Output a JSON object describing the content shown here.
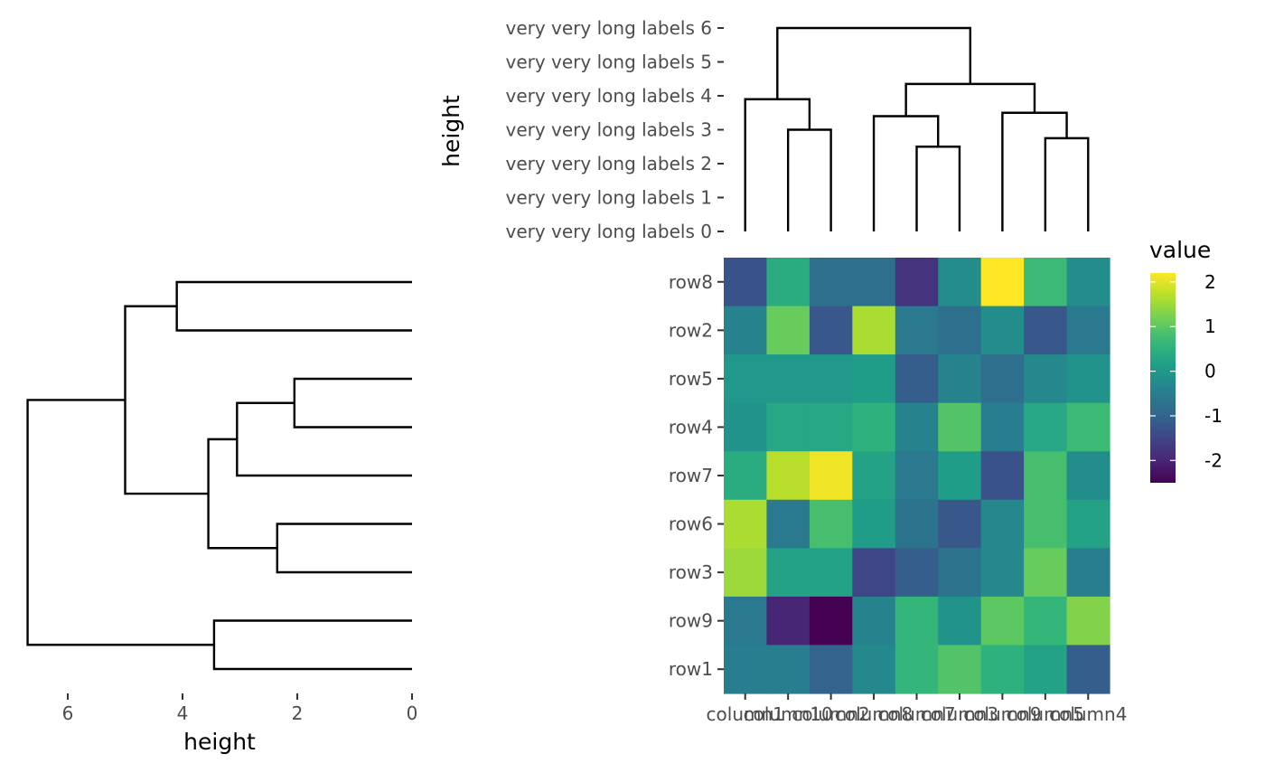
{
  "chart_data": [
    {
      "type": "dendrogram",
      "orientation": "top",
      "ylabel": "height",
      "ytick_labels": [
        "very very long labels 0",
        "very very long labels 1",
        "very very long labels 2",
        "very very long labels 3",
        "very very long labels 4",
        "very very long labels 5",
        "very very long labels 6"
      ],
      "leaf_order": [
        "column1",
        "column10",
        "column2",
        "column8",
        "column7",
        "column3",
        "column9",
        "column5",
        "column4"
      ],
      "merges": [
        {
          "left": "column10",
          "right": "column2",
          "height": 3.0
        },
        {
          "left": "column7",
          "right": "column3",
          "height": 2.5
        },
        {
          "left": "column5",
          "right": "column4",
          "height": 2.75
        },
        {
          "left": "column1",
          "right": "column10+column2",
          "height": 3.9
        },
        {
          "left": "column8",
          "right": "column7+column3",
          "height": 3.4
        },
        {
          "left": "column9",
          "right": "column5+column4",
          "height": 3.5
        },
        {
          "left": "column8+column7+column3",
          "right": "column9+column5+column4",
          "height": 4.35
        },
        {
          "left": "column1+column10+column2",
          "right": "column8+column7+column3+column9+column5+column4",
          "height": 6.0
        }
      ]
    },
    {
      "type": "dendrogram",
      "orientation": "left",
      "xlabel": "height",
      "xticks": [
        6,
        4,
        2,
        0
      ],
      "xlim": [
        6.8,
        0
      ],
      "leaf_order": [
        "row8",
        "row2",
        "row5",
        "row4",
        "row7",
        "row6",
        "row3",
        "row9",
        "row1"
      ],
      "merges": [
        {
          "left": "row8",
          "right": "row2",
          "height": 4.1
        },
        {
          "left": "row5",
          "right": "row4",
          "height": 2.05
        },
        {
          "left": "row6",
          "right": "row3",
          "height": 2.35
        },
        {
          "left": "row9",
          "right": "row1",
          "height": 3.45
        },
        {
          "left": "row5+row4",
          "right": "row7",
          "height": 3.05
        },
        {
          "left": "row5+row4+row7",
          "right": "row6+row3",
          "height": 3.55
        },
        {
          "left": "row8+row2",
          "right": "row5+row4+row7+row6+row3",
          "height": 5.0
        },
        {
          "left": "row8+row2+row5+row4+row7+row6+row3",
          "right": "row9+row1",
          "height": 6.7
        }
      ]
    },
    {
      "type": "heatmap",
      "rows": [
        "row8",
        "row2",
        "row5",
        "row4",
        "row7",
        "row6",
        "row3",
        "row9",
        "row1"
      ],
      "columns": [
        "column1",
        "column10",
        "column2",
        "column8",
        "column7",
        "column3",
        "column9",
        "column5",
        "column4"
      ],
      "values": [
        [
          -1.3,
          0.4,
          -0.8,
          -0.8,
          -1.8,
          -0.2,
          2.2,
          0.7,
          -0.2
        ],
        [
          -0.4,
          1.1,
          -1.2,
          1.6,
          -0.6,
          -0.8,
          -0.2,
          -1.2,
          -0.6
        ],
        [
          0.0,
          0.0,
          0.0,
          0.1,
          -1.1,
          -0.4,
          -0.8,
          -0.3,
          -0.1
        ],
        [
          -0.1,
          0.3,
          0.3,
          0.5,
          -0.4,
          0.9,
          -0.5,
          0.3,
          0.7
        ],
        [
          0.4,
          1.7,
          2.1,
          0.2,
          -0.6,
          0.1,
          -1.3,
          0.8,
          -0.2
        ],
        [
          1.6,
          -0.6,
          0.8,
          0.1,
          -0.7,
          -1.2,
          -0.3,
          0.8,
          0.2
        ],
        [
          1.5,
          0.2,
          0.2,
          -1.5,
          -1.1,
          -0.7,
          -0.3,
          1.1,
          -0.5
        ],
        [
          -0.6,
          -2.0,
          -2.5,
          -0.4,
          0.6,
          -0.1,
          1.0,
          0.6,
          1.3
        ],
        [
          -0.5,
          -0.5,
          -1.0,
          -0.3,
          0.6,
          0.9,
          0.5,
          0.2,
          -1.1
        ]
      ],
      "legend": {
        "title": "value",
        "ticks": [
          2,
          1,
          0,
          -1,
          -2
        ],
        "tick_labels": [
          "2",
          "1",
          "0",
          "-1",
          "-2"
        ],
        "range": [
          -2.5,
          2.2
        ],
        "colormap": "viridis"
      }
    }
  ],
  "viridis_stops": [
    "#440154",
    "#482878",
    "#3e4989",
    "#31688e",
    "#26828e",
    "#1f9e89",
    "#35b779",
    "#6ece58",
    "#b5de2b",
    "#fde725"
  ]
}
